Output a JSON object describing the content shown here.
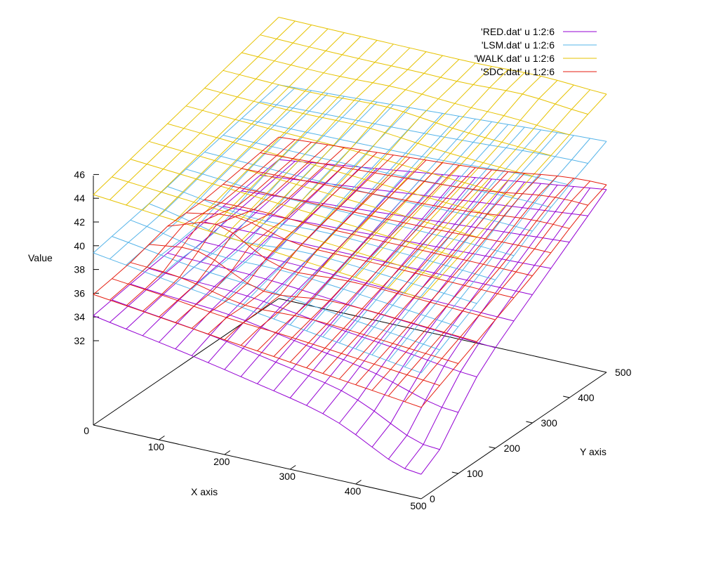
{
  "chart_data": {
    "type": "surface",
    "xlabel": "X axis",
    "ylabel": "Y axis",
    "zlabel": "Value",
    "xlim": [
      0,
      500
    ],
    "ylim": [
      0,
      500
    ],
    "zlim": [
      32,
      46
    ],
    "x_ticks": [
      0,
      100,
      200,
      300,
      400,
      500
    ],
    "y_ticks": [
      0,
      100,
      200,
      300,
      400,
      500
    ],
    "z_ticks": [
      32,
      34,
      36,
      38,
      40,
      42,
      44,
      46
    ],
    "grid": false,
    "legend_position": "top-right",
    "grid_x": [
      0,
      25,
      50,
      75,
      100,
      125,
      150,
      175,
      200,
      225,
      250,
      275,
      300,
      325,
      350,
      375,
      400,
      425,
      450,
      475,
      500
    ],
    "grid_y": [
      0,
      50,
      100,
      150,
      200,
      250,
      300,
      350,
      400,
      450,
      500
    ],
    "series": [
      {
        "name": "'RED.dat' u 1:2:6",
        "color": "#9400d3",
        "corners": {
          "x0y0": 34.1,
          "x500y0": 28.8,
          "x0y500": 36.6,
          "x500y500": 40.3
        },
        "bumps": [
          {
            "x": 150,
            "y": 120,
            "amp": 0.4,
            "spread": 70
          },
          {
            "x": 480,
            "y": 30,
            "amp": -2.2,
            "spread": 60
          }
        ]
      },
      {
        "name": "'LSM.dat' u 1:2:6",
        "color": "#56b4e9",
        "corners": {
          "x0y0": 39.4,
          "x500y0": 35.5,
          "x0y500": 42.9,
          "x500y500": 44.3
        },
        "bumps": [
          {
            "x": 125,
            "y": 150,
            "amp": -0.9,
            "spread": 60
          },
          {
            "x": 450,
            "y": 350,
            "amp": 0.4,
            "spread": 80
          }
        ]
      },
      {
        "name": "'WALK.dat' u 1:2:6",
        "color": "#e6c200",
        "corners": {
          "x0y0": 44.3,
          "x500y0": 41.8,
          "x0y500": 48.6,
          "x500y500": 48.3
        },
        "bumps": [
          {
            "x": 250,
            "y": 350,
            "amp": 0.5,
            "spread": 60
          },
          {
            "x": 400,
            "y": 450,
            "amp": 0.4,
            "spread": 50
          }
        ]
      },
      {
        "name": "'SDC.dat' u 1:2:6",
        "color": "#e51e10",
        "corners": {
          "x0y0": 35.9,
          "x500y0": 32.6,
          "x0y500": 38.5,
          "x500y500": 40.4
        },
        "bumps": [
          {
            "x": 75,
            "y": 200,
            "amp": 1.8,
            "spread": 45
          },
          {
            "x": 175,
            "y": 150,
            "amp": -1.0,
            "spread": 50
          },
          {
            "x": 450,
            "y": 450,
            "amp": 0.6,
            "spread": 60
          }
        ]
      }
    ]
  }
}
